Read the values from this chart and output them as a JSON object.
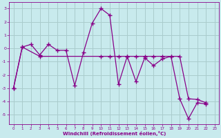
{
  "xlabel": "Windchill (Refroidissement éolien,°C)",
  "bg_color": "#c8eaed",
  "line_color": "#880088",
  "grid_color": "#aacccc",
  "xlim": [
    -0.5,
    23.5
  ],
  "ylim": [
    -5.7,
    3.5
  ],
  "yticks": [
    -5,
    -4,
    -3,
    -2,
    -1,
    0,
    1,
    2,
    3
  ],
  "xticks": [
    0,
    1,
    2,
    3,
    4,
    5,
    6,
    7,
    8,
    9,
    10,
    11,
    12,
    13,
    14,
    15,
    16,
    17,
    18,
    19,
    20,
    21,
    22,
    23
  ],
  "line1_x": [
    0,
    1,
    2,
    3,
    4,
    5,
    6,
    7,
    8,
    9,
    10,
    11,
    12,
    13,
    14,
    15,
    16,
    17,
    18,
    19,
    20,
    21,
    22
  ],
  "line1_y": [
    -3.0,
    0.1,
    0.3,
    -0.5,
    0.3,
    -0.15,
    -0.15,
    -2.8,
    -0.3,
    1.9,
    3.0,
    2.5,
    -2.7,
    -0.6,
    -2.5,
    -0.7,
    -1.3,
    -0.8,
    -0.6,
    -3.8,
    -5.3,
    -4.1,
    -4.2
  ],
  "line2_x": [
    0,
    1,
    3,
    10,
    11,
    12,
    13,
    14,
    15,
    16,
    17,
    18,
    19,
    20,
    21,
    22
  ],
  "line2_y": [
    -3.0,
    0.1,
    -0.6,
    -0.6,
    -0.6,
    -0.6,
    -0.6,
    -0.6,
    -0.6,
    -0.6,
    -0.6,
    -0.6,
    -0.6,
    -3.8,
    -3.85,
    -4.1
  ]
}
